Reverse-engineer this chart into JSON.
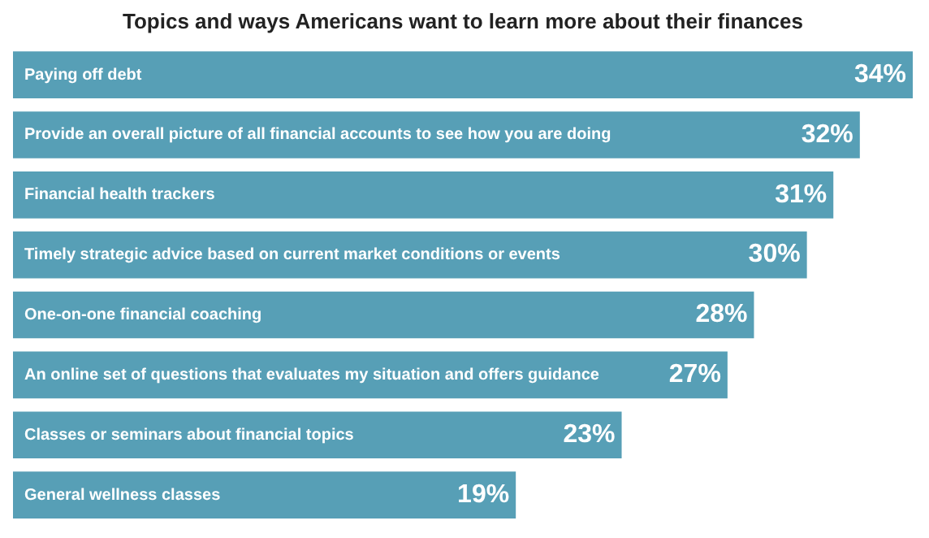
{
  "chart_data": {
    "type": "bar",
    "orientation": "horizontal",
    "title": "Topics and ways Americans want to learn more about their finances",
    "categories": [
      "Paying off debt",
      "Provide an overall picture of all financial accounts to see how you are doing",
      "Financial health trackers",
      "Timely strategic advice based on current market conditions or events",
      "One-on-one financial coaching",
      "An online set of questions that evaluates my situation and offers guidance",
      "Classes or seminars about financial topics",
      "General wellness classes"
    ],
    "values": [
      34,
      32,
      31,
      30,
      28,
      27,
      23,
      19
    ],
    "value_labels": [
      "34%",
      "32%",
      "31%",
      "30%",
      "28%",
      "27%",
      "23%",
      "19%"
    ],
    "color": "#579fb6",
    "legend": false
  }
}
